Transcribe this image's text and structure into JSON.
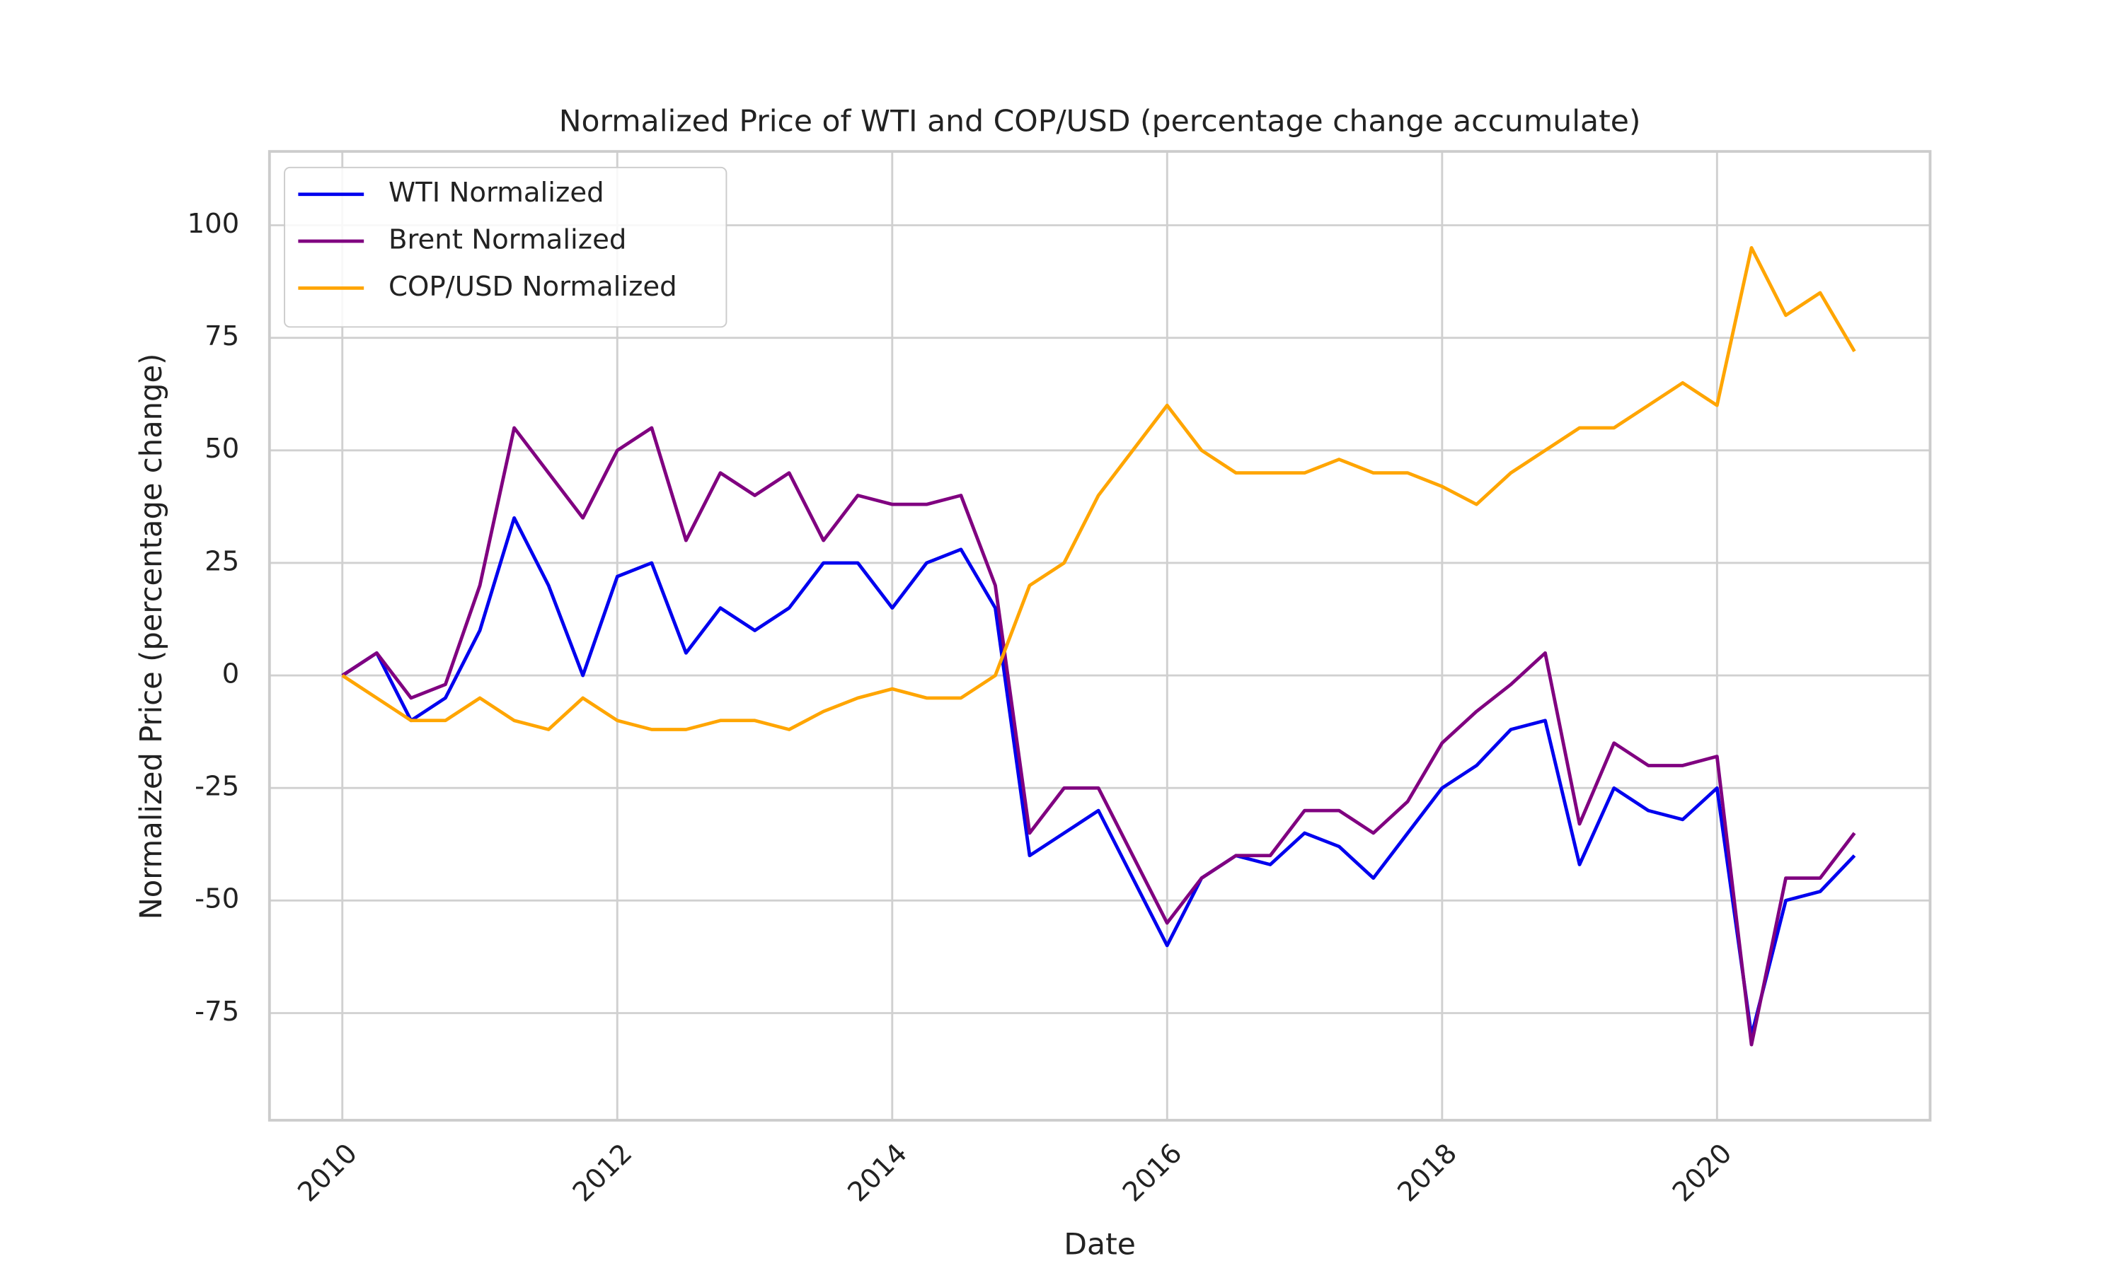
{
  "chart_data": {
    "type": "line",
    "title": "Normalized Price of WTI and COP/USD (percentage change accumulate)",
    "x_label": "Date",
    "y_label": "Normalized Price (percentage change)",
    "x": [
      2010.0,
      2010.25,
      2010.5,
      2010.75,
      2011.0,
      2011.25,
      2011.5,
      2011.75,
      2012.0,
      2012.25,
      2012.5,
      2012.75,
      2013.0,
      2013.25,
      2013.5,
      2013.75,
      2014.0,
      2014.25,
      2014.5,
      2014.75,
      2015.0,
      2015.25,
      2015.5,
      2015.75,
      2016.0,
      2016.25,
      2016.5,
      2016.75,
      2017.0,
      2017.25,
      2017.5,
      2017.75,
      2018.0,
      2018.25,
      2018.5,
      2018.75,
      2019.0,
      2019.25,
      2019.5,
      2019.75,
      2020.0,
      2020.25,
      2020.5,
      2020.75,
      2021.0
    ],
    "series": [
      {
        "name": "WTI Normalized",
        "color": "#0000ee",
        "values": [
          0,
          5,
          -10,
          -5,
          10,
          35,
          20,
          0,
          22,
          25,
          5,
          15,
          10,
          15,
          25,
          25,
          15,
          25,
          28,
          15,
          -40,
          -35,
          -30,
          -45,
          -60,
          -45,
          -40,
          -42,
          -35,
          -38,
          -45,
          -35,
          -25,
          -20,
          -12,
          -10,
          -42,
          -25,
          -30,
          -32,
          -25,
          -80,
          -50,
          -48,
          -40
        ]
      },
      {
        "name": "Brent Normalized",
        "color": "#800080",
        "values": [
          0,
          5,
          -5,
          -2,
          20,
          55,
          45,
          35,
          50,
          55,
          30,
          45,
          40,
          45,
          30,
          40,
          38,
          38,
          40,
          20,
          -35,
          -25,
          -25,
          -40,
          -55,
          -45,
          -40,
          -40,
          -30,
          -30,
          -35,
          -28,
          -15,
          -8,
          -2,
          5,
          -33,
          -15,
          -20,
          -20,
          -18,
          -82,
          -45,
          -45,
          -35
        ]
      },
      {
        "name": "COP/USD Normalized",
        "color": "#ffa500",
        "values": [
          0,
          -5,
          -10,
          -10,
          -5,
          -10,
          -12,
          -5,
          -10,
          -12,
          -12,
          -10,
          -10,
          -12,
          -8,
          -5,
          -3,
          -5,
          -5,
          0,
          20,
          25,
          40,
          50,
          60,
          50,
          45,
          45,
          45,
          48,
          45,
          45,
          42,
          38,
          45,
          50,
          55,
          55,
          60,
          65,
          60,
          95,
          80,
          85,
          72
        ]
      }
    ],
    "xlim": [
      2009.47,
      2021.55
    ],
    "xticks": [
      2010,
      2012,
      2014,
      2016,
      2018,
      2020
    ],
    "ylim": [
      -98.8,
      116.4
    ],
    "yticks": [
      -75,
      -50,
      -25,
      0,
      25,
      50,
      75,
      100
    ],
    "grid": true,
    "legend": "upper left"
  }
}
